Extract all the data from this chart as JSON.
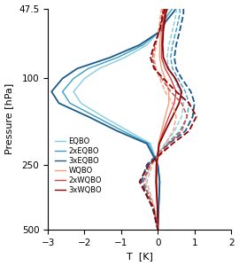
{
  "title": "",
  "xlabel": "T  [K]",
  "ylabel": "Pressure [hPa]",
  "pressure_levels": [
    47.5,
    50,
    55,
    60,
    70,
    80,
    90,
    100,
    115,
    130,
    150,
    175,
    200,
    250,
    300,
    400,
    500
  ],
  "series": {
    "EQBO_solid": {
      "label": "EQBO",
      "color": "#85cce0",
      "linestyle": "solid",
      "linewidth": 1.0,
      "values": [
        0.3,
        0.2,
        0.1,
        0.05,
        -0.3,
        -0.9,
        -1.6,
        -2.0,
        -2.3,
        -2.1,
        -1.5,
        -0.8,
        -0.2,
        0.0,
        0.05,
        0.02,
        0.0
      ]
    },
    "EQBO2x_solid": {
      "label": "2xEQBO",
      "color": "#3a9ec2",
      "linestyle": "solid",
      "linewidth": 1.0,
      "values": [
        0.4,
        0.3,
        0.15,
        0.07,
        -0.4,
        -1.1,
        -1.9,
        -2.3,
        -2.6,
        -2.4,
        -1.7,
        -0.95,
        -0.25,
        0.0,
        0.05,
        0.02,
        0.0
      ]
    },
    "EQBO3x_solid": {
      "label": "3xEQBO",
      "color": "#1a5a8a",
      "linestyle": "solid",
      "linewidth": 1.3,
      "values": [
        0.5,
        0.4,
        0.2,
        0.1,
        -0.5,
        -1.3,
        -2.2,
        -2.6,
        -2.9,
        -2.7,
        -1.9,
        -1.1,
        -0.3,
        0.0,
        0.05,
        0.02,
        0.0
      ]
    },
    "EQBO_dashed": {
      "label": "",
      "color": "#85cce0",
      "linestyle": "dashed",
      "linewidth": 1.0,
      "values": [
        0.5,
        0.5,
        0.45,
        0.4,
        0.3,
        0.25,
        0.3,
        0.45,
        0.6,
        0.7,
        0.65,
        0.45,
        0.2,
        -0.2,
        -0.35,
        -0.1,
        0.0
      ]
    },
    "EQBO2x_dashed": {
      "label": "",
      "color": "#3a9ec2",
      "linestyle": "dashed",
      "linewidth": 1.0,
      "values": [
        0.6,
        0.6,
        0.55,
        0.5,
        0.4,
        0.35,
        0.4,
        0.55,
        0.75,
        0.85,
        0.8,
        0.6,
        0.25,
        -0.25,
        -0.4,
        -0.12,
        0.0
      ]
    },
    "EQBO3x_dashed": {
      "label": "",
      "color": "#1a5a8a",
      "linestyle": "dashed",
      "linewidth": 1.3,
      "values": [
        0.7,
        0.7,
        0.65,
        0.6,
        0.5,
        0.45,
        0.5,
        0.65,
        0.9,
        1.0,
        0.95,
        0.75,
        0.3,
        -0.3,
        -0.45,
        -0.14,
        0.0
      ]
    },
    "WQBO_solid": {
      "label": "WQBO",
      "color": "#f5a07a",
      "linestyle": "solid",
      "linewidth": 1.0,
      "values": [
        0.15,
        0.13,
        0.1,
        0.08,
        0.05,
        0.05,
        0.1,
        0.2,
        0.3,
        0.3,
        0.2,
        0.1,
        0.02,
        -0.02,
        -0.03,
        -0.01,
        0.0
      ]
    },
    "WQBO2x_solid": {
      "label": "2xWQBO",
      "color": "#d94040",
      "linestyle": "solid",
      "linewidth": 1.0,
      "values": [
        0.2,
        0.18,
        0.15,
        0.12,
        0.1,
        0.1,
        0.2,
        0.35,
        0.5,
        0.45,
        0.3,
        0.15,
        0.03,
        -0.03,
        -0.04,
        -0.01,
        0.0
      ]
    },
    "WQBO3x_solid": {
      "label": "3xWQBO",
      "color": "#8b0000",
      "linestyle": "solid",
      "linewidth": 1.3,
      "values": [
        0.25,
        0.22,
        0.18,
        0.15,
        0.13,
        0.15,
        0.28,
        0.48,
        0.65,
        0.58,
        0.4,
        0.2,
        0.04,
        -0.04,
        -0.05,
        -0.01,
        0.0
      ]
    },
    "WQBO_dashed": {
      "label": "",
      "color": "#f5a07a",
      "linestyle": "dashed",
      "linewidth": 1.0,
      "values": [
        0.1,
        0.08,
        0.05,
        0.02,
        -0.05,
        -0.1,
        -0.05,
        0.05,
        0.2,
        0.4,
        0.5,
        0.42,
        0.2,
        -0.15,
        -0.3,
        -0.08,
        0.0
      ]
    },
    "WQBO2x_dashed": {
      "label": "",
      "color": "#d94040",
      "linestyle": "dashed",
      "linewidth": 1.0,
      "values": [
        0.15,
        0.12,
        0.08,
        0.04,
        -0.07,
        -0.15,
        -0.07,
        0.1,
        0.35,
        0.65,
        0.8,
        0.65,
        0.3,
        -0.2,
        -0.4,
        -0.1,
        0.0
      ]
    },
    "WQBO3x_dashed": {
      "label": "",
      "color": "#8b0000",
      "linestyle": "dashed",
      "linewidth": 1.3,
      "values": [
        0.2,
        0.15,
        0.1,
        0.05,
        -0.1,
        -0.2,
        -0.1,
        0.15,
        0.5,
        0.85,
        1.05,
        0.85,
        0.4,
        -0.25,
        -0.5,
        -0.12,
        0.0
      ]
    }
  },
  "legend_entries": [
    [
      "EQBO",
      "#85cce0"
    ],
    [
      "2xEQBO",
      "#3a9ec2"
    ],
    [
      "3xEQBO",
      "#1a5a8a"
    ],
    [
      "WQBO",
      "#f5a07a"
    ],
    [
      "2xWQBO",
      "#d94040"
    ],
    [
      "3xWQBO",
      "#8b0000"
    ]
  ],
  "ylim": [
    500,
    47.5
  ],
  "xlim": [
    -3,
    2
  ],
  "xticks": [
    -3,
    -2,
    -1,
    0,
    1,
    2
  ],
  "yticks_major": [
    47.5,
    100,
    250,
    500
  ],
  "ytick_labels": [
    "47.5",
    "100",
    "250",
    "500"
  ]
}
